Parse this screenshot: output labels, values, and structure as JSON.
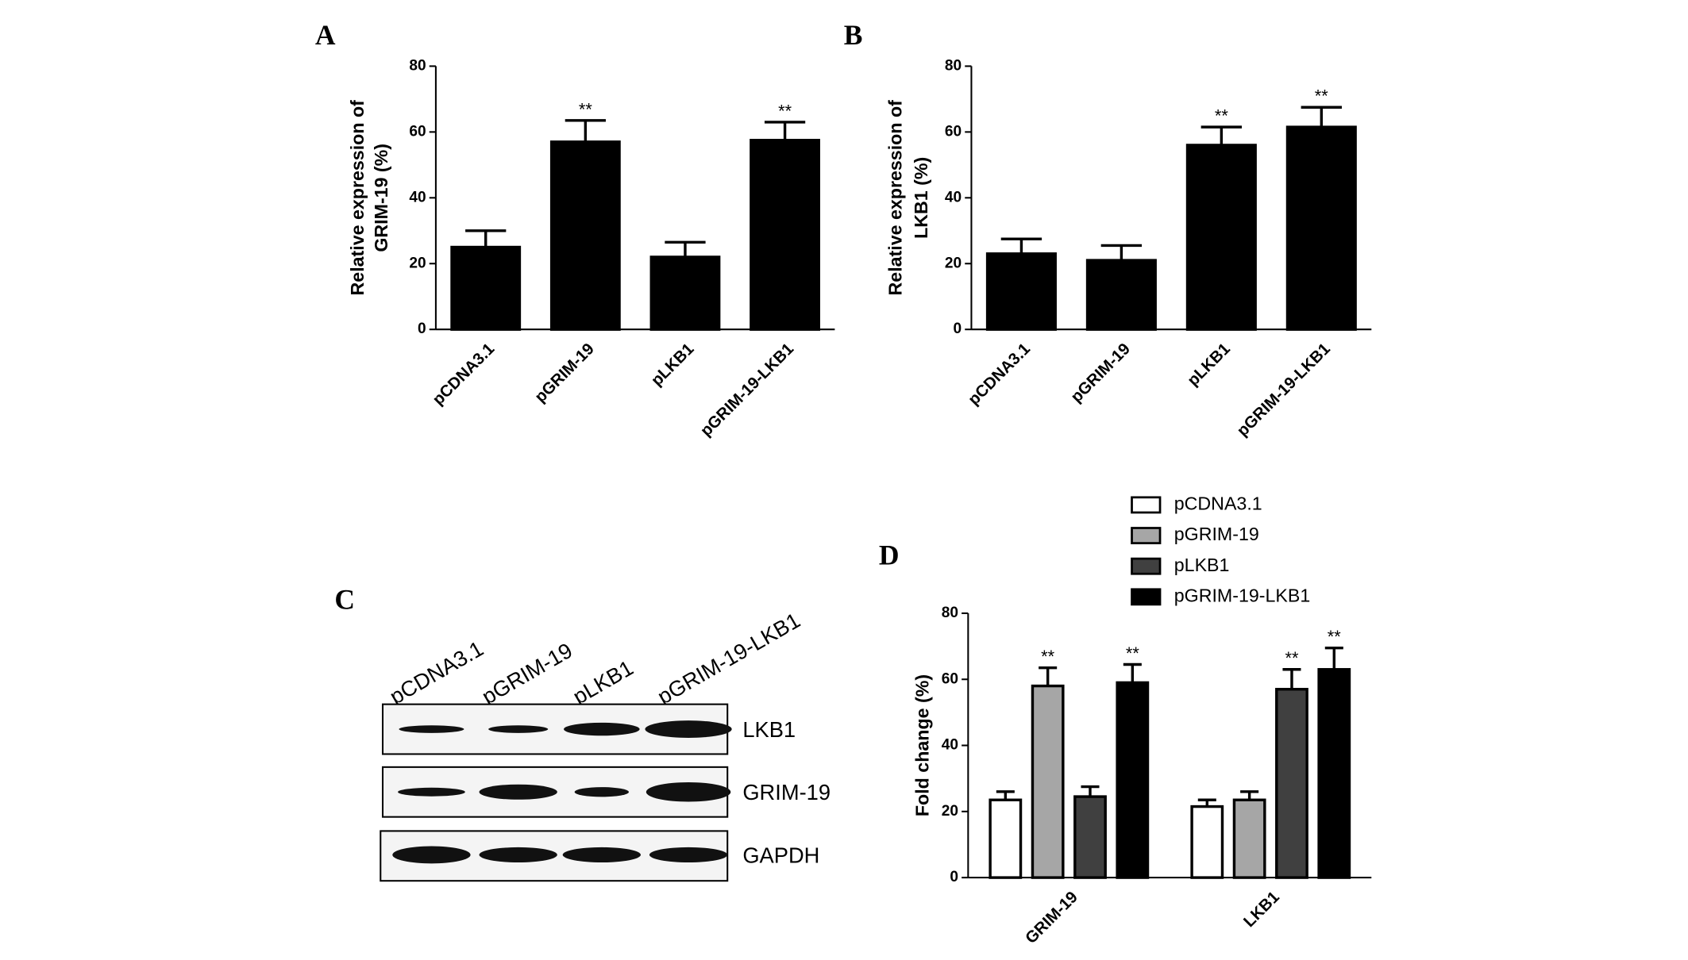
{
  "chart_data": [
    {
      "type": "bar",
      "panel": "A",
      "y_label": [
        "Relative expression of",
        "GRIM-19 (%)"
      ],
      "categories": [
        "pCDNA3.1",
        "pGRIM-19",
        "pLKB1",
        "pGRIM-19-LKB1"
      ],
      "values": [
        25,
        57,
        22,
        57.5
      ],
      "errors": [
        5,
        6.5,
        4.5,
        5.5
      ],
      "sig_labels": [
        null,
        "**",
        null,
        "**"
      ],
      "color": "#000000",
      "ylim": [
        0,
        80
      ],
      "yticks": [
        0,
        20,
        40,
        60,
        80
      ]
    },
    {
      "type": "bar",
      "panel": "B",
      "y_label": [
        "Relative expression of",
        "LKB1 (%)"
      ],
      "categories": [
        "pCDNA3.1",
        "pGRIM-19",
        "pLKB1",
        "pGRIM-19-LKB1"
      ],
      "values": [
        23,
        21,
        56,
        61.5
      ],
      "errors": [
        4.5,
        4.5,
        5.5,
        6
      ],
      "sig_labels": [
        null,
        null,
        "**",
        "**"
      ],
      "color": "#000000",
      "ylim": [
        0,
        80
      ],
      "yticks": [
        0,
        20,
        40,
        60,
        80
      ]
    },
    {
      "type": "bar",
      "panel": "D",
      "y_label": [
        "Fold change (%)"
      ],
      "categories": [
        "GRIM-19",
        "LKB1"
      ],
      "series": [
        {
          "name": "pCDNA3.1",
          "color": "#ffffff",
          "values": [
            23.5,
            21.5
          ],
          "errors": [
            2.5,
            2
          ],
          "sig_labels": [
            null,
            null
          ]
        },
        {
          "name": "pGRIM-19",
          "color": "#a6a6a6",
          "values": [
            58,
            23.5
          ],
          "errors": [
            5.5,
            2.5
          ],
          "sig_labels": [
            "**",
            null
          ]
        },
        {
          "name": "pLKB1",
          "color": "#404040",
          "values": [
            24.5,
            57
          ],
          "errors": [
            3,
            6
          ],
          "sig_labels": [
            null,
            "**"
          ]
        },
        {
          "name": "pGRIM-19-LKB1",
          "color": "#000000",
          "values": [
            59,
            63
          ],
          "errors": [
            5.5,
            6.5
          ],
          "sig_labels": [
            "**",
            "**"
          ]
        }
      ],
      "ylim": [
        0,
        80
      ],
      "yticks": [
        0,
        20,
        40,
        60,
        80
      ]
    }
  ],
  "blot": {
    "panel": "C",
    "lanes": [
      "pCDNA3.1",
      "pGRIM-19",
      "pLKB1",
      "pGRIM-19-LKB1"
    ],
    "proteins": [
      "LKB1",
      "GRIM-19",
      "GAPDH"
    ]
  }
}
